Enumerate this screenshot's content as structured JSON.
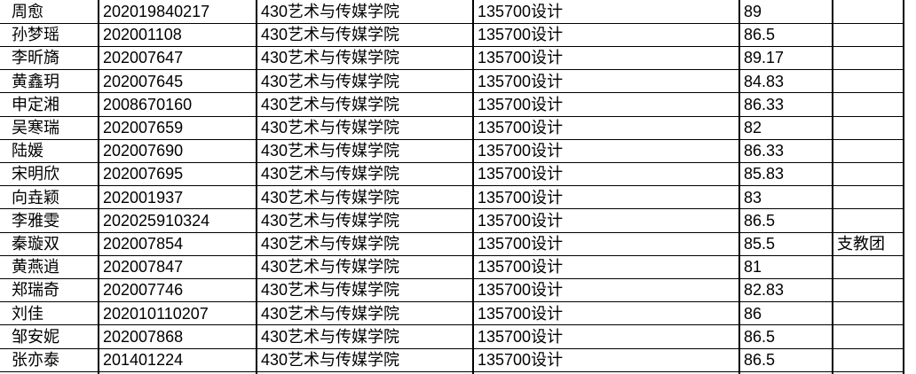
{
  "table": {
    "rows": [
      [
        "周愈",
        "202019840217",
        "430艺术与传媒学院",
        "135700设计",
        "89"
      ],
      [
        "孙梦瑶",
        "202001108",
        "430艺术与传媒学院",
        "135700设计",
        "86.5"
      ],
      [
        "李昕旖",
        "202007647",
        "430艺术与传媒学院",
        "135700设计",
        "89.17"
      ],
      [
        "黄鑫玥",
        "202007645",
        "430艺术与传媒学院",
        "135700设计",
        "84.83"
      ],
      [
        "申定湘",
        "2008670160",
        "430艺术与传媒学院",
        "135700设计",
        "86.33"
      ],
      [
        "吴寒瑞",
        "202007659",
        "430艺术与传媒学院",
        "135700设计",
        "82"
      ],
      [
        "陆媛",
        "202007690",
        "430艺术与传媒学院",
        "135700设计",
        "86.33"
      ],
      [
        "宋明欣",
        "202007695",
        "430艺术与传媒学院",
        "135700设计",
        "85.83"
      ],
      [
        "向垚颖",
        "202001937",
        "430艺术与传媒学院",
        "135700设计",
        "83"
      ],
      [
        "李雅雯",
        "202025910324",
        "430艺术与传媒学院",
        "135700设计",
        "86.5"
      ],
      [
        "秦璇双",
        "202007854",
        "430艺术与传媒学院",
        "135700设计",
        "85.5",
        "支教团"
      ],
      [
        "黄燕逍",
        "202007847",
        "430艺术与传媒学院",
        "135700设计",
        "81"
      ],
      [
        "郑瑞奇",
        "202007746",
        "430艺术与传媒学院",
        "135700设计",
        "82.83"
      ],
      [
        "刘佳",
        "202010110207",
        "430艺术与传媒学院",
        "135700设计",
        "86"
      ],
      [
        "邹安妮",
        "202007868",
        "430艺术与传媒学院",
        "135700设计",
        "86.5"
      ],
      [
        "张亦泰",
        "201401224",
        "430艺术与传媒学院",
        "135700设计",
        "86.5"
      ]
    ]
  }
}
